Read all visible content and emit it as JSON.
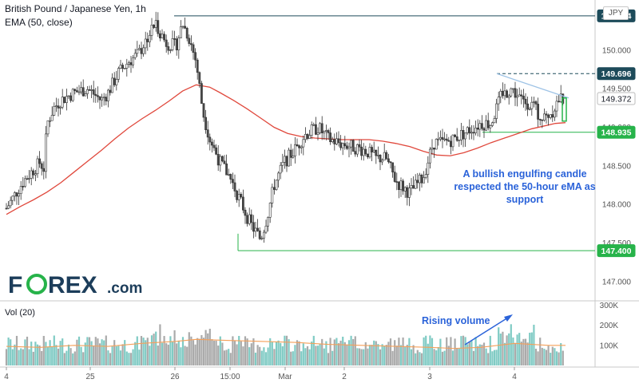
{
  "header": {
    "title": "British Pound / Japanese Yen, 1h",
    "ema_label": "EMA (50, close)",
    "currency": "JPY"
  },
  "volume_panel": {
    "label": "Vol (20)"
  },
  "logo": {
    "text_f": "F",
    "text_o": "O",
    "text_rex": "REX",
    "text_com": ".com"
  },
  "annotations": {
    "engulfing": [
      "A bullish engulfing candle",
      "respected the 50-hour eMA as",
      "support"
    ],
    "rising_volume": "Rising volume"
  },
  "colors": {
    "up": "#26a69a",
    "down": "#ef5350",
    "candle_body": "#4a4a4a",
    "ema": "#e0483c",
    "vol_up": "#80cbc4",
    "vol_down": "#aaaaaa",
    "vol_ma": "#f5a05a",
    "level_line_green": "#27b34a",
    "level_line_dark": "#1d4b5a",
    "annotation": "#2b63d9",
    "trendline": "#9ec3e6"
  },
  "chart_data": {
    "type": "candlestick",
    "title": "British Pound / Japanese Yen, 1h",
    "y_axis": {
      "ticks": [
        147.0,
        147.5,
        148.0,
        148.5,
        149.0,
        149.5,
        150.0,
        150.5
      ],
      "tick_labels": [
        "147.000",
        "147.500",
        "148.000",
        "148.500",
        "149.000",
        "149.500",
        "150.000",
        "150.500"
      ],
      "ylim": [
        146.75,
        150.65
      ]
    },
    "x_axis": {
      "labels": [
        "4",
        "25",
        "26",
        "15:00",
        "Mar",
        "2",
        "3",
        "4"
      ]
    },
    "price_tags": [
      {
        "value": 150.444,
        "label": "150.444",
        "color": "#1d4b5a"
      },
      {
        "value": 149.696,
        "label": "149.696",
        "color": "#1d4b5a"
      },
      {
        "value": 149.372,
        "label": "149.372",
        "color": "#ffffff",
        "text_color": "#131722"
      },
      {
        "value": 148.935,
        "label": "148.935",
        "color": "#27b34a"
      },
      {
        "value": 147.4,
        "label": "147.400",
        "color": "#27b34a"
      }
    ],
    "levels": [
      {
        "value": 150.444,
        "style": "solid",
        "color": "#1d4b5a"
      },
      {
        "value": 149.696,
        "style": "dashed",
        "color": "#1d4b5a"
      },
      {
        "value": 148.935,
        "style": "solid",
        "color": "#27b34a"
      },
      {
        "value": 147.4,
        "style": "solid",
        "color": "#27b34a"
      }
    ],
    "ema_series": [
      [
        0,
        147.87
      ],
      [
        8,
        147.97
      ],
      [
        16,
        148.06
      ],
      [
        24,
        148.16
      ],
      [
        32,
        148.28
      ],
      [
        40,
        148.42
      ],
      [
        48,
        148.56
      ],
      [
        56,
        148.7
      ],
      [
        64,
        148.85
      ],
      [
        72,
        148.99
      ],
      [
        80,
        149.11
      ],
      [
        88,
        149.22
      ],
      [
        96,
        149.34
      ],
      [
        104,
        149.47
      ],
      [
        112,
        149.55
      ],
      [
        120,
        149.52
      ],
      [
        126,
        149.45
      ],
      [
        134,
        149.35
      ],
      [
        142,
        149.24
      ],
      [
        150,
        149.12
      ],
      [
        158,
        149.0
      ],
      [
        166,
        148.92
      ],
      [
        174,
        148.88
      ],
      [
        182,
        148.86
      ],
      [
        190,
        148.85
      ],
      [
        198,
        148.84
      ],
      [
        206,
        148.84
      ],
      [
        214,
        148.84
      ],
      [
        222,
        148.82
      ],
      [
        230,
        148.79
      ],
      [
        238,
        148.75
      ],
      [
        246,
        148.69
      ],
      [
        254,
        148.64
      ],
      [
        262,
        148.63
      ],
      [
        270,
        148.67
      ],
      [
        278,
        148.73
      ],
      [
        286,
        148.8
      ],
      [
        294,
        148.86
      ],
      [
        302,
        148.92
      ],
      [
        310,
        148.98
      ],
      [
        318,
        149.02
      ],
      [
        324,
        149.05
      ],
      [
        330,
        149.06
      ]
    ],
    "vol_axis": {
      "ticks": [
        100000,
        200000,
        300000
      ],
      "tick_labels": [
        "100K",
        "200K",
        "300K"
      ],
      "ylim": [
        0,
        310000
      ]
    },
    "volume_ma_series": [
      [
        0,
        95000
      ],
      [
        20,
        90000
      ],
      [
        40,
        100000
      ],
      [
        60,
        95000
      ],
      [
        80,
        110000
      ],
      [
        100,
        120000
      ],
      [
        112,
        130000
      ],
      [
        130,
        125000
      ],
      [
        150,
        120000
      ],
      [
        170,
        115000
      ],
      [
        190,
        105000
      ],
      [
        210,
        100000
      ],
      [
        230,
        95000
      ],
      [
        250,
        90000
      ],
      [
        264,
        85000
      ],
      [
        280,
        90000
      ],
      [
        300,
        110000
      ],
      [
        320,
        100000
      ],
      [
        330,
        100000
      ]
    ]
  }
}
